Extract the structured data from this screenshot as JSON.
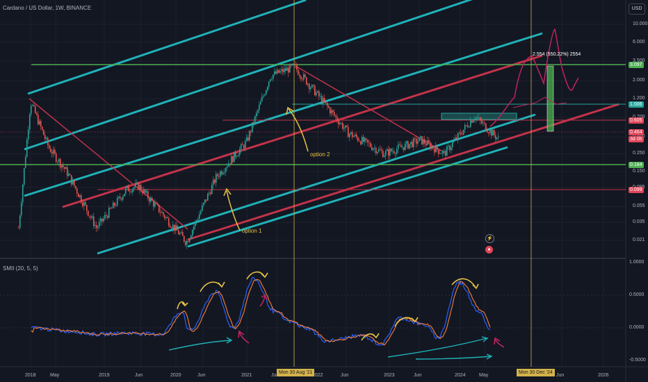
{
  "header": {
    "title": "Cardano / US Dollar, 1W, BINANCE",
    "currency_button": "USD"
  },
  "indicator": {
    "title": "SMII (20, 5, 5)"
  },
  "annotations": {
    "option1": "option 1",
    "option2": "option 2",
    "target": "2.554 (550.22%) 2554"
  },
  "crosshair_tags": {
    "aug21": "Mon 30 Aug '21",
    "dec24": "Mon 30 Dec '24"
  },
  "price_tags": [
    {
      "label": "3.097",
      "color": "#4caf50"
    },
    {
      "label": "1.006",
      "color": "#26a69a"
    },
    {
      "label": "0.605",
      "color": "#e04558"
    },
    {
      "label": "0.464",
      "color": "#e04558"
    },
    {
      "label": "3d 0h",
      "color": "#e04558"
    },
    {
      "label": "0.184",
      "color": "#4caf50"
    },
    {
      "label": "0.099",
      "color": "#e04558"
    }
  ],
  "chart_data": {
    "type": "line",
    "title": "Cardano / US Dollar, 1W, BINANCE",
    "y_scale": "log",
    "y_ticks": [
      "10.000",
      "6.000",
      "3.500",
      "2.000",
      "1.200",
      "0.700",
      "0.400",
      "0.250",
      "0.150",
      "0.095",
      "0.055",
      "0.035",
      "0.021"
    ],
    "x_ticks": [
      "2018",
      "May",
      "2019",
      "Jun",
      "2020",
      "Jun",
      "2021",
      "Jun",
      "2022",
      "Jun",
      "2023",
      "Jun",
      "2024",
      "May",
      "Jun",
      "2026"
    ],
    "price_series": {
      "x": [
        "2017-11",
        "2018-01",
        "2018-04",
        "2018-07",
        "2018-12",
        "2019-05",
        "2019-07",
        "2020-03",
        "2020-08",
        "2021-01",
        "2021-05",
        "2021-09",
        "2022-01",
        "2022-06",
        "2022-12",
        "2023-06",
        "2023-10",
        "2024-03",
        "2024-07"
      ],
      "y": [
        0.03,
        1.1,
        0.3,
        0.15,
        0.03,
        0.09,
        0.1,
        0.02,
        0.13,
        0.35,
        2.3,
        3.0,
        1.3,
        0.45,
        0.25,
        0.37,
        0.25,
        0.73,
        0.38
      ]
    },
    "indicator_series": {
      "name": "SMII (20, 5, 5)",
      "y_ticks": [
        "1.0000",
        "0.5000",
        "0.0000",
        "-0.5000"
      ],
      "ylim": [
        -0.5,
        1.0
      ]
    },
    "legend": "none",
    "grid": true
  }
}
